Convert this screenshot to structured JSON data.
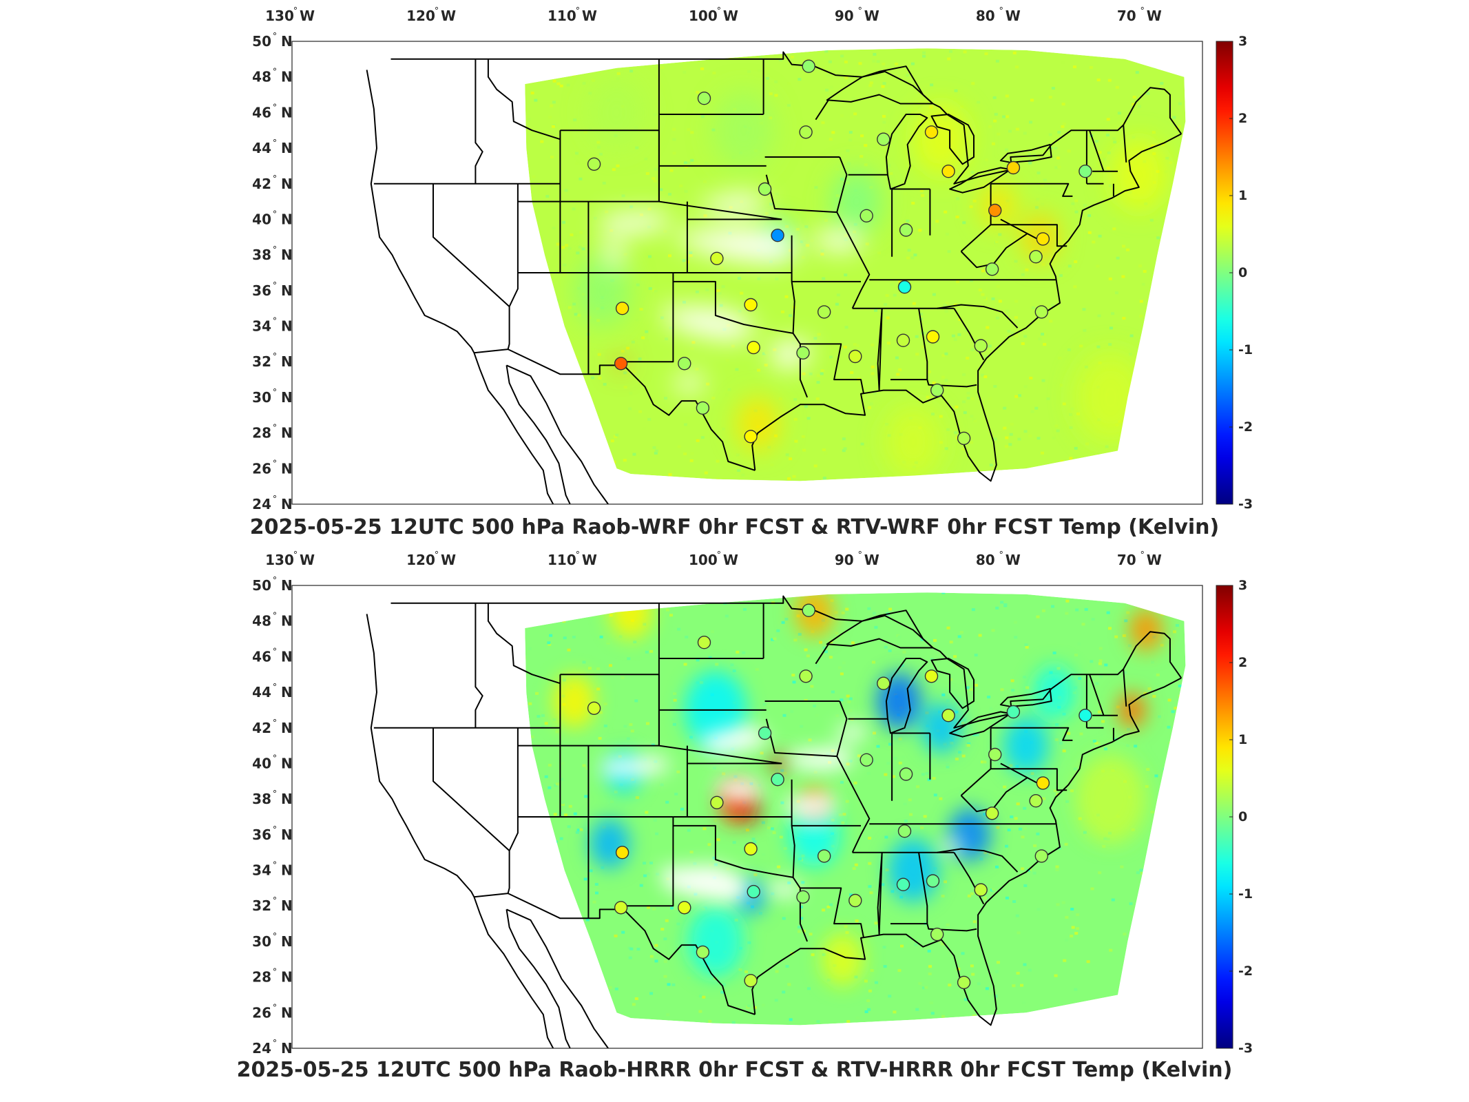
{
  "panels": [
    {
      "caption": "2025-05-25 12UTC 500 hPa Raob-WRF 0hr FCST & RTV-WRF 0hr FCST Temp (Kelvin)",
      "field_style": "smooth"
    },
    {
      "caption": "2025-05-25 12UTC 500 hPa Raob-HRRR 0hr FCST & RTV-HRRR 0hr FCST Temp (Kelvin)",
      "field_style": "variable"
    }
  ],
  "lon_labels": [
    {
      "deg": "130",
      "hemi": "W"
    },
    {
      "deg": "120",
      "hemi": "W"
    },
    {
      "deg": "110",
      "hemi": "W"
    },
    {
      "deg": "100",
      "hemi": "W"
    },
    {
      "deg": "90",
      "hemi": "W"
    },
    {
      "deg": "80",
      "hemi": "W"
    },
    {
      "deg": "70",
      "hemi": "W"
    }
  ],
  "lat_labels": [
    {
      "deg": "50",
      "hemi": "N"
    },
    {
      "deg": "48",
      "hemi": "N"
    },
    {
      "deg": "46",
      "hemi": "N"
    },
    {
      "deg": "44",
      "hemi": "N"
    },
    {
      "deg": "42",
      "hemi": "N"
    },
    {
      "deg": "40",
      "hemi": "N"
    },
    {
      "deg": "38",
      "hemi": "N"
    },
    {
      "deg": "36",
      "hemi": "N"
    },
    {
      "deg": "34",
      "hemi": "N"
    },
    {
      "deg": "32",
      "hemi": "N"
    },
    {
      "deg": "30",
      "hemi": "N"
    },
    {
      "deg": "28",
      "hemi": "N"
    },
    {
      "deg": "26",
      "hemi": "N"
    },
    {
      "deg": "24",
      "hemi": "N"
    }
  ],
  "colorbar": {
    "ticks": [
      "3",
      "2",
      "1",
      "0",
      "-1",
      "-2",
      "-3"
    ],
    "colormap": "jet",
    "min": -3,
    "max": 3
  },
  "colors": {
    "land_outline": "#000000",
    "no_data": "#ffffff",
    "station_edge": "#333333"
  },
  "stations_panel1": [
    {
      "lon": -93.4,
      "lat": 48.6,
      "value": 0.1
    },
    {
      "lon": -100.8,
      "lat": 46.8,
      "value": 0.2
    },
    {
      "lon": -93.6,
      "lat": 44.9,
      "value": 0.3
    },
    {
      "lon": -88.1,
      "lat": 44.5,
      "value": 0.2
    },
    {
      "lon": -84.7,
      "lat": 44.9,
      "value": 0.9
    },
    {
      "lon": -108.6,
      "lat": 43.1,
      "value": 0.3
    },
    {
      "lon": -83.5,
      "lat": 42.7,
      "value": 0.9
    },
    {
      "lon": -78.9,
      "lat": 42.9,
      "value": 1.0
    },
    {
      "lon": -73.8,
      "lat": 42.7,
      "value": 0.0
    },
    {
      "lon": -96.5,
      "lat": 41.7,
      "value": 0.2
    },
    {
      "lon": -89.3,
      "lat": 40.2,
      "value": 0.2
    },
    {
      "lon": -80.2,
      "lat": 40.5,
      "value": 1.4
    },
    {
      "lon": -95.6,
      "lat": 39.1,
      "value": -1.4
    },
    {
      "lon": -86.5,
      "lat": 39.4,
      "value": 0.2
    },
    {
      "lon": -76.8,
      "lat": 38.9,
      "value": 0.9
    },
    {
      "lon": -77.3,
      "lat": 37.9,
      "value": 0.3
    },
    {
      "lon": -99.9,
      "lat": 37.8,
      "value": 0.5
    },
    {
      "lon": -80.4,
      "lat": 37.2,
      "value": 0.2
    },
    {
      "lon": -86.6,
      "lat": 36.2,
      "value": -0.6
    },
    {
      "lon": -106.6,
      "lat": 35.0,
      "value": 0.9
    },
    {
      "lon": -97.5,
      "lat": 35.2,
      "value": 0.8
    },
    {
      "lon": -92.3,
      "lat": 34.8,
      "value": 0.3
    },
    {
      "lon": -76.9,
      "lat": 34.8,
      "value": 0.3
    },
    {
      "lon": -86.7,
      "lat": 33.2,
      "value": 0.4
    },
    {
      "lon": -84.6,
      "lat": 33.4,
      "value": 0.8
    },
    {
      "lon": -97.3,
      "lat": 32.8,
      "value": 0.7
    },
    {
      "lon": -93.8,
      "lat": 32.5,
      "value": 0.2
    },
    {
      "lon": -90.1,
      "lat": 32.3,
      "value": 0.5
    },
    {
      "lon": -81.2,
      "lat": 32.9,
      "value": 0.3
    },
    {
      "lon": -106.7,
      "lat": 31.9,
      "value": 1.7
    },
    {
      "lon": -102.2,
      "lat": 31.9,
      "value": 0.2
    },
    {
      "lon": -100.9,
      "lat": 29.4,
      "value": 0.2
    },
    {
      "lon": -84.3,
      "lat": 30.4,
      "value": 0.2
    },
    {
      "lon": -97.5,
      "lat": 27.8,
      "value": 0.8
    },
    {
      "lon": -82.4,
      "lat": 27.7,
      "value": 0.3
    }
  ],
  "stations_panel2": [
    {
      "lon": -93.4,
      "lat": 48.6,
      "value": 0.1
    },
    {
      "lon": -100.8,
      "lat": 46.8,
      "value": 0.4
    },
    {
      "lon": -93.6,
      "lat": 44.9,
      "value": 0.3
    },
    {
      "lon": -88.1,
      "lat": 44.5,
      "value": 0.3
    },
    {
      "lon": -84.7,
      "lat": 44.9,
      "value": 0.6
    },
    {
      "lon": -108.6,
      "lat": 43.1,
      "value": 0.5
    },
    {
      "lon": -83.5,
      "lat": 42.7,
      "value": 0.4
    },
    {
      "lon": -78.9,
      "lat": 42.9,
      "value": -0.3
    },
    {
      "lon": -73.8,
      "lat": 42.7,
      "value": -0.6
    },
    {
      "lon": -96.5,
      "lat": 41.7,
      "value": -0.2
    },
    {
      "lon": -89.3,
      "lat": 40.2,
      "value": 0.1
    },
    {
      "lon": -80.2,
      "lat": 40.5,
      "value": 0.2
    },
    {
      "lon": -95.6,
      "lat": 39.1,
      "value": -0.2
    },
    {
      "lon": -86.5,
      "lat": 39.4,
      "value": 0.1
    },
    {
      "lon": -76.8,
      "lat": 38.9,
      "value": 0.9
    },
    {
      "lon": -77.3,
      "lat": 37.9,
      "value": 0.3
    },
    {
      "lon": -99.9,
      "lat": 37.8,
      "value": 0.4
    },
    {
      "lon": -80.4,
      "lat": 37.2,
      "value": 0.4
    },
    {
      "lon": -86.6,
      "lat": 36.2,
      "value": 0.1
    },
    {
      "lon": -106.6,
      "lat": 35.0,
      "value": 0.9
    },
    {
      "lon": -97.5,
      "lat": 35.2,
      "value": 0.6
    },
    {
      "lon": -92.3,
      "lat": 34.8,
      "value": 0.1
    },
    {
      "lon": -76.9,
      "lat": 34.8,
      "value": 0.2
    },
    {
      "lon": -86.7,
      "lat": 33.2,
      "value": -0.3
    },
    {
      "lon": -84.6,
      "lat": 33.4,
      "value": -0.1
    },
    {
      "lon": -97.3,
      "lat": 32.8,
      "value": -0.3
    },
    {
      "lon": -93.8,
      "lat": 32.5,
      "value": 0.1
    },
    {
      "lon": -90.1,
      "lat": 32.3,
      "value": 0.3
    },
    {
      "lon": -81.2,
      "lat": 32.9,
      "value": 0.4
    },
    {
      "lon": -106.7,
      "lat": 31.9,
      "value": 0.5
    },
    {
      "lon": -102.2,
      "lat": 31.9,
      "value": 0.6
    },
    {
      "lon": -100.9,
      "lat": 29.4,
      "value": 0.2
    },
    {
      "lon": -84.3,
      "lat": 30.4,
      "value": 0.2
    },
    {
      "lon": -97.5,
      "lat": 27.8,
      "value": 0.4
    },
    {
      "lon": -82.4,
      "lat": 27.7,
      "value": 0.3
    }
  ]
}
